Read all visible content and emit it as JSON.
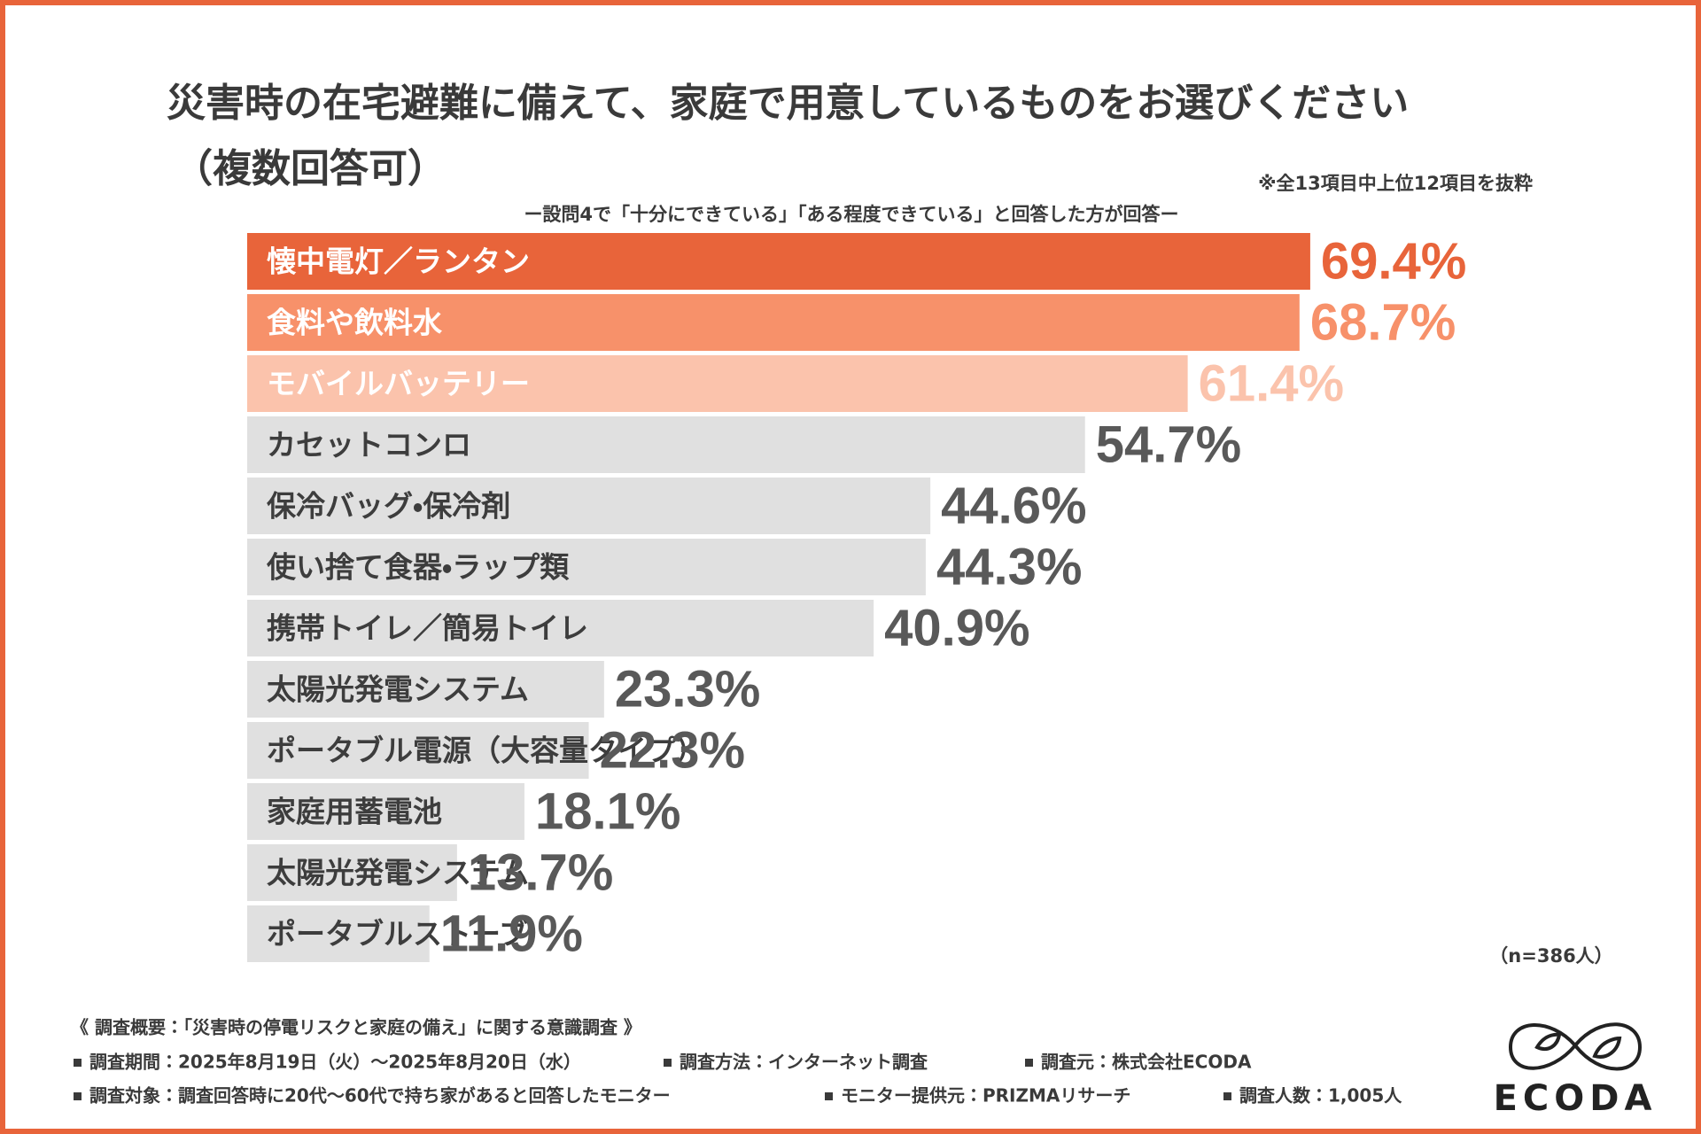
{
  "chart_data": {
    "type": "bar",
    "title": "災害時の在宅避難に備えて、家庭で用意しているものをお選びください",
    "title_line2": "（複数回答可）",
    "note": "※全13項目中上位12項目を抜粋",
    "subtitle": "ー設問4で「十分にできている」「ある程度できている」と回答した方が回答ー",
    "sample_size": "（n=386人）",
    "categories": [
      "懐中電灯／ランタン",
      "食料や飲料水",
      "モバイルバッテリー",
      "カセットコンロ",
      "保冷バッグ・保冷剤",
      "使い捨て食器・ラップ類",
      "携帯トイレ／簡易トイレ",
      "太陽光発電システム",
      "ポータブル電源（大容量タイプ）",
      "家庭用蓄電池",
      "太陽光発電システム",
      "ポータブルストーブ"
    ],
    "values": [
      69.4,
      68.7,
      61.4,
      54.7,
      44.6,
      44.3,
      40.9,
      23.3,
      22.3,
      18.1,
      13.7,
      11.9
    ],
    "value_labels": [
      "69.4%",
      "68.7%",
      "61.4%",
      "54.7%",
      "44.6%",
      "44.3%",
      "40.9%",
      "23.3%",
      "22.3%",
      "18.1%",
      "13.7%",
      "11.9%"
    ],
    "colors": [
      "#e8643a",
      "#f7916a",
      "#fbc3ac",
      "#e0e0e0",
      "#e0e0e0",
      "#e0e0e0",
      "#e0e0e0",
      "#e0e0e0",
      "#e0e0e0",
      "#e0e0e0",
      "#e0e0e0",
      "#e0e0e0"
    ],
    "label_colors": [
      "#e8643a",
      "#f7916a",
      "#fbc3ac",
      "#595959",
      "#595959",
      "#595959",
      "#595959",
      "#595959",
      "#595959",
      "#595959",
      "#595959",
      "#595959"
    ]
  },
  "footer": {
    "heading": "《 調査概要：「災害時の停電リスクと家庭の備え」に関する意識調査 》",
    "rows": [
      [
        "調査期間：2025年8月19日（火）〜2025年8月20日（水）",
        "調査方法：インターネット調査",
        "調査元：株式会社ECODA"
      ],
      [
        "調査対象：調査回答時に20代〜60代で持ち家があると回答したモニター",
        "モニター提供元：PRIZMAリサーチ",
        "調査人数：1,005人"
      ]
    ]
  },
  "logo": "ECODA"
}
